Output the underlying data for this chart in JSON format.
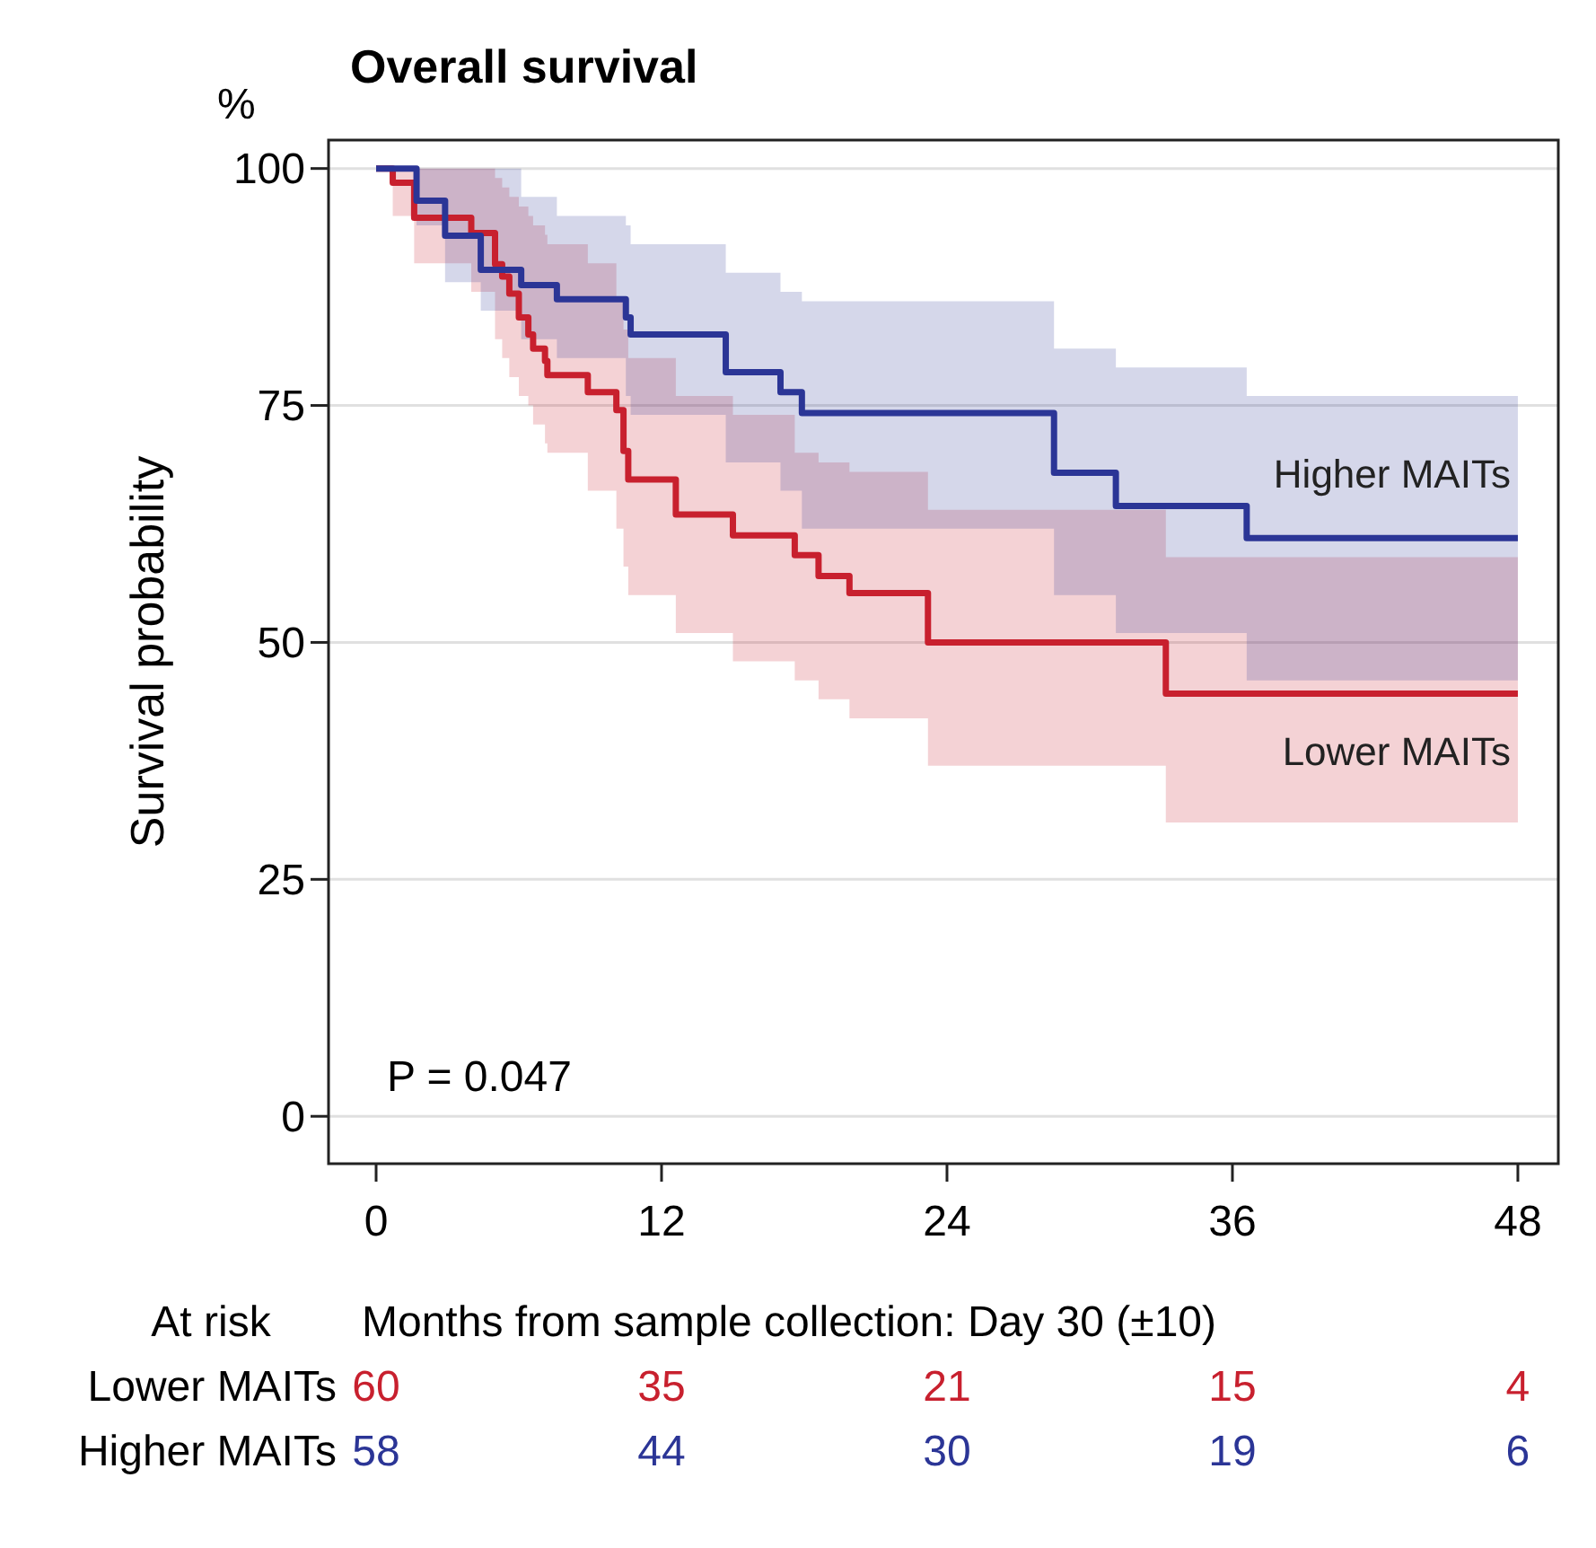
{
  "chart_data": {
    "type": "step",
    "title": "Overall survival",
    "xlabel": "Months from sample collection: Day 30 (±10)",
    "ylabel": "Survival probability",
    "xlim": [
      -2,
      49.7
    ],
    "xticks": [
      0,
      12,
      24,
      36,
      48
    ],
    "ylim": [
      -5,
      103
    ],
    "yticks": [
      0,
      25,
      50,
      75,
      100
    ],
    "grid": "y",
    "series": [
      {
        "name": "Lower MAITs",
        "color": "#c8202e",
        "x": [
          0,
          0.7,
          1.6,
          4.0,
          5.0,
          5.3,
          5.6,
          6.0,
          6.4,
          6.6,
          7.1,
          7.2,
          8.9,
          10.1,
          10.4,
          10.6,
          12.6,
          15.0,
          17.6,
          18.6,
          19.9,
          23.2,
          33.2,
          48
        ],
        "values": [
          100,
          98.5,
          94.8,
          93.2,
          89.9,
          88.6,
          86.8,
          84.3,
          82.5,
          81.0,
          79.7,
          78.2,
          76.4,
          74.5,
          70.2,
          67.2,
          63.5,
          61.3,
          59.2,
          57.0,
          55.2,
          50,
          44.6,
          44.6
        ],
        "upper": [
          100,
          100,
          100,
          100,
          99,
          98,
          97,
          96,
          95,
          94,
          93,
          92,
          90,
          86,
          83,
          80,
          76,
          74,
          70,
          69,
          68,
          64,
          59,
          59
        ],
        "lower": [
          100,
          95,
          90,
          87,
          82,
          80,
          78,
          76,
          75,
          73,
          71,
          70,
          66,
          62,
          58,
          55,
          51,
          48,
          46,
          44,
          42,
          37,
          31,
          31
        ]
      },
      {
        "name": "Higher MAITs",
        "color": "#2b3596",
        "x": [
          0,
          1.7,
          2.9,
          4.4,
          6.1,
          7.6,
          10.5,
          10.7,
          14.7,
          17.0,
          17.9,
          28.5,
          31.1,
          36.6,
          48
        ],
        "values": [
          100,
          96.6,
          92.9,
          89.3,
          87.7,
          86.2,
          84.3,
          82.5,
          78.5,
          76.4,
          74.2,
          67.9,
          64.4,
          61.0,
          61.0
        ],
        "upper": [
          100,
          100,
          100,
          100,
          97,
          95,
          94,
          92,
          89,
          87,
          86,
          81,
          79,
          76,
          76
        ],
        "lower": [
          100,
          94,
          88,
          85,
          82,
          80,
          76,
          74,
          69,
          66,
          62,
          55,
          51,
          46,
          46
        ]
      }
    ],
    "annotations": [
      "%",
      "P = 0.047",
      "At risk",
      "Lower MAITs",
      "60",
      "35",
      "21",
      "15",
      "4",
      "Higher MAITs",
      "58",
      "44",
      "30",
      "19",
      "6"
    ]
  }
}
